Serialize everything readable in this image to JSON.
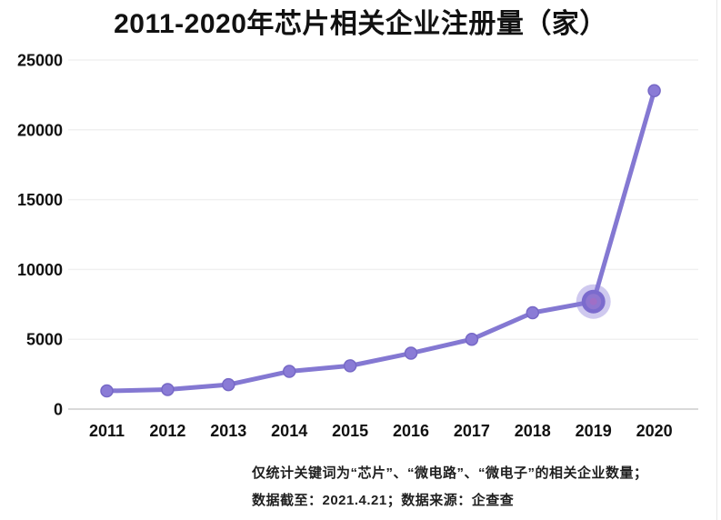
{
  "page": {
    "footnote_line1": "仅统计关键词为“芯片”、“微电路”、“微电子”的相关企业数量；",
    "footnote_line2": "数据截至：2021.4.21；数据来源：企查查"
  },
  "chart_data": {
    "type": "line",
    "title": "2011-2020年芯片相关企业注册量（家）",
    "categories": [
      "2011",
      "2012",
      "2013",
      "2014",
      "2015",
      "2016",
      "2017",
      "2018",
      "2019",
      "2020"
    ],
    "values": [
      1300,
      1400,
      1750,
      2700,
      3100,
      4000,
      5000,
      6900,
      7700,
      22800
    ],
    "xlabel": "",
    "ylabel": "",
    "ylim": [
      0,
      25000
    ],
    "yticks": [
      0,
      5000,
      10000,
      15000,
      20000,
      25000
    ],
    "grid": true,
    "legend_position": "none",
    "highlight": {
      "index": 8,
      "category": "2019",
      "value": 7700
    },
    "colors": {
      "line": "#8478d2",
      "marker": "#8a7bd6",
      "marker_edge": "#7668c6",
      "halo": "rgba(134,121,214,0.40)",
      "halo_ring": "#7b6bcd",
      "halo_inner": "#8f76cf",
      "halo_center": "#a06fc6",
      "grid": "#f0f0f0",
      "axis": "#d9d9d9",
      "label": "#111111"
    }
  }
}
